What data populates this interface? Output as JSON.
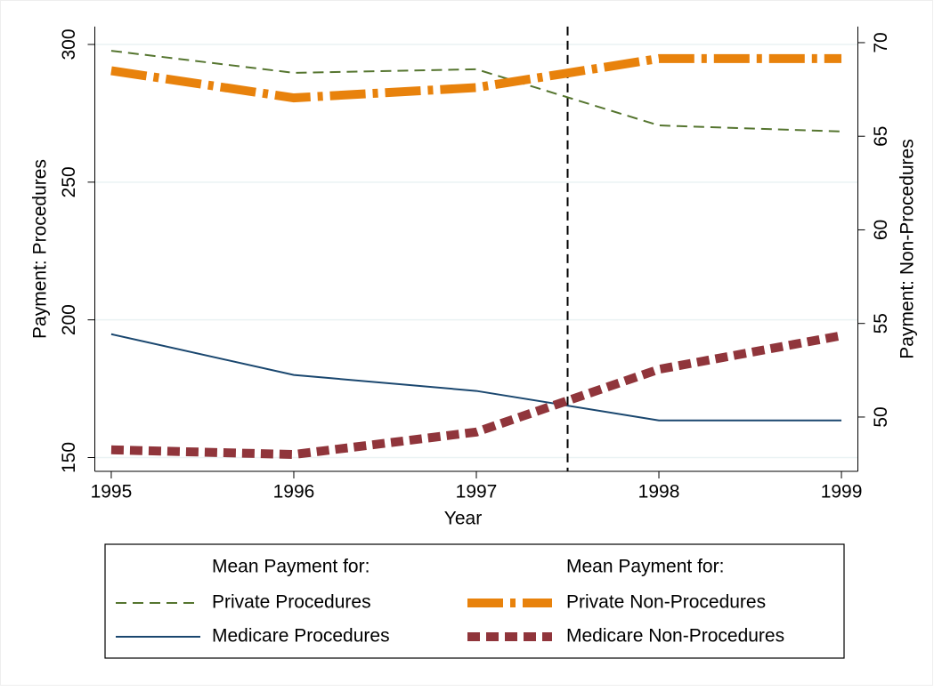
{
  "chart_data": {
    "type": "line",
    "x_label": "Year",
    "y_label": "Payment: Procedures",
    "y2_label": "Payment: Non-Procedures",
    "x": [
      1995,
      1996,
      1997,
      1998,
      1999
    ],
    "xlim": [
      1994.91,
      1999.09
    ],
    "xticks": [
      1995,
      1996,
      1997,
      1998,
      1999
    ],
    "ylim": [
      145,
      306.5
    ],
    "yticks": [
      150,
      200,
      250,
      300
    ],
    "y2lim": [
      47.1,
      70.86
    ],
    "y2ticks": [
      50,
      55,
      60,
      65,
      70
    ],
    "grid": true,
    "reference_line_x": 1997.5,
    "legend_headers": [
      "Mean Payment for:",
      "Mean Payment for:"
    ],
    "series": [
      {
        "name": "Private Procedures",
        "color": "#55752f",
        "width": 2,
        "dash": "12,7",
        "values": [
          297.7,
          289.7,
          291,
          270.6,
          268.4
        ]
      },
      {
        "name": "Private Non-Procedures",
        "color": "#e8820c",
        "width": 10,
        "dash": "40,8,6,8",
        "axis": "y2",
        "values": [
          68.5,
          67.05,
          67.6,
          69.15,
          69.15
        ]
      },
      {
        "name": "Medicare Procedures",
        "color": "#1a476f",
        "width": 2,
        "dash": "none",
        "values": [
          194.8,
          180,
          174.2,
          163.5,
          163.5
        ]
      },
      {
        "name": "Medicare Non-Procedures",
        "color": "#90353b",
        "width": 10,
        "dash": "14,7",
        "axis": "y2",
        "values": [
          48.25,
          48.0,
          49.2,
          52.55,
          54.35
        ]
      }
    ]
  }
}
